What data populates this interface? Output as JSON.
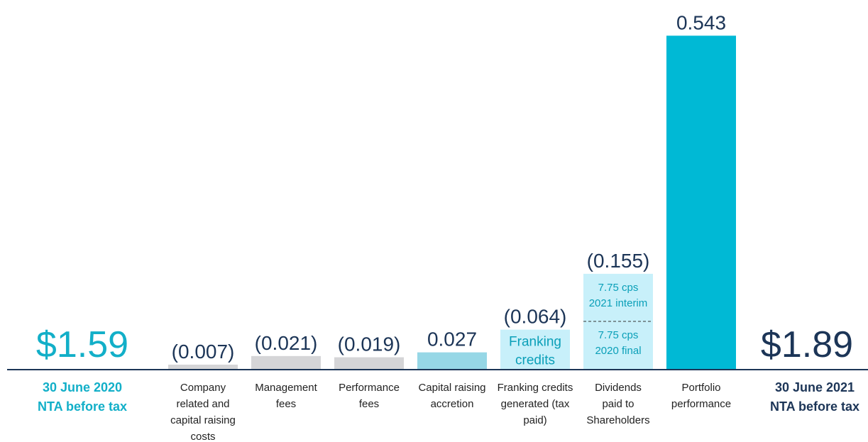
{
  "chart_data": {
    "type": "bar",
    "subtype": "waterfall",
    "start": {
      "value": "$1.59",
      "label_lines": [
        "30 June 2020",
        "NTA before tax"
      ]
    },
    "end": {
      "value": "$1.89",
      "label_lines": [
        "30 June 2021",
        "NTA before tax"
      ]
    },
    "bars": [
      {
        "key": "company",
        "value": -0.007,
        "value_label": "(0.007)",
        "label_lines": [
          "Company",
          "related and",
          "capital raising",
          "costs"
        ]
      },
      {
        "key": "mgmt",
        "value": -0.021,
        "value_label": "(0.021)",
        "label_lines": [
          "Management",
          "fees"
        ]
      },
      {
        "key": "perf",
        "value": -0.019,
        "value_label": "(0.019)",
        "label_lines": [
          "Performance",
          "fees"
        ]
      },
      {
        "key": "capital",
        "value": 0.027,
        "value_label": "0.027",
        "label_lines": [
          "Capital raising",
          "accretion"
        ]
      },
      {
        "key": "franking",
        "value": -0.064,
        "value_label": "(0.064)",
        "label_lines": [
          "Franking credits",
          "generated (tax",
          "paid)"
        ],
        "inner_lines": [
          "Franking",
          "credits"
        ]
      },
      {
        "key": "dividends",
        "value": -0.155,
        "value_label": "(0.155)",
        "label_lines": [
          "Dividends",
          "paid to",
          "Shareholders"
        ],
        "segments": [
          {
            "lines": [
              "7.75 cps",
              "2020 final"
            ]
          },
          {
            "lines": [
              "7.75 cps",
              "2021 interim"
            ]
          }
        ]
      },
      {
        "key": "portfolio",
        "value": 0.543,
        "value_label": "0.543",
        "label_lines": [
          "Portfolio",
          "performance"
        ]
      }
    ],
    "colors": {
      "grey": "#d5d5d7",
      "light_blue": "#96d7e6",
      "pale_blue": "#c8f0fa",
      "cyan": "#00b9d5",
      "navy": "#1c3557",
      "accent": "#12afc8"
    }
  }
}
